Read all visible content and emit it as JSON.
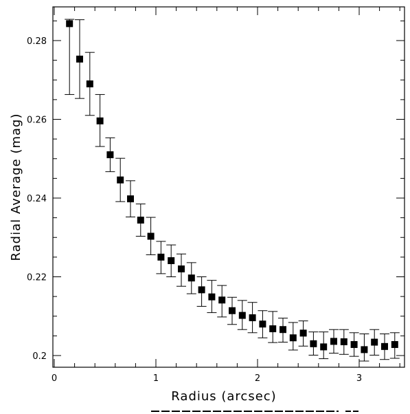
{
  "chart_data": {
    "type": "scatter",
    "title": "",
    "xlabel": "Radius (arcsec)",
    "ylabel": "Radial Average (mag)",
    "xlim": [
      0,
      3.6
    ],
    "ylim": [
      0.198,
      0.288
    ],
    "x_ticks": [
      "0",
      "1",
      "2",
      "3"
    ],
    "y_ticks": [
      "0.2",
      "0.22",
      "0.24",
      "0.26",
      "0.28"
    ],
    "grid": false,
    "marker": "filled-square",
    "marker_color": "#000000",
    "series": [
      {
        "x": [
          0.15,
          0.25,
          0.35,
          0.45,
          0.55,
          0.65,
          0.75,
          0.85,
          0.95,
          1.05,
          1.15,
          1.25,
          1.35,
          1.45,
          1.55,
          1.65,
          1.75,
          1.85,
          1.95,
          2.05,
          2.15,
          2.25,
          2.35,
          2.45,
          2.55,
          2.65,
          2.75,
          2.85,
          2.95,
          3.05,
          3.15,
          3.25,
          3.35
        ],
        "y": [
          0.2843,
          0.2753,
          0.269,
          0.2596,
          0.251,
          0.2446,
          0.2398,
          0.2344,
          0.2303,
          0.225,
          0.2241,
          0.222,
          0.2197,
          0.2167,
          0.2149,
          0.2141,
          0.2114,
          0.2102,
          0.2096,
          0.208,
          0.2068,
          0.2066,
          0.2045,
          0.2057,
          0.203,
          0.2022,
          0.2036,
          0.2035,
          0.2028,
          0.2015,
          0.2034,
          0.2023,
          0.2028
        ],
        "y_upper": [
          0.2854,
          0.2853,
          0.277,
          0.2663,
          0.2553,
          0.2501,
          0.2444,
          0.2385,
          0.2351,
          0.229,
          0.2281,
          0.2258,
          0.2236,
          0.22,
          0.2191,
          0.2178,
          0.2148,
          0.214,
          0.2135,
          0.2114,
          0.2112,
          0.2095,
          0.2084,
          0.2088,
          0.206,
          0.206,
          0.2066,
          0.2066,
          0.2058,
          0.2055,
          0.2066,
          0.2055,
          0.2058
        ],
        "y_lower": [
          0.2663,
          0.2653,
          0.261,
          0.2531,
          0.2467,
          0.2391,
          0.2352,
          0.2303,
          0.2256,
          0.2208,
          0.22,
          0.2176,
          0.2157,
          0.2125,
          0.2109,
          0.2098,
          0.2079,
          0.2066,
          0.2058,
          0.2045,
          0.2033,
          0.2034,
          0.2014,
          0.2024,
          0.2001,
          0.1992,
          0.2006,
          0.2003,
          0.1998,
          0.1986,
          0.2001,
          0.199,
          0.1993
        ]
      }
    ]
  }
}
